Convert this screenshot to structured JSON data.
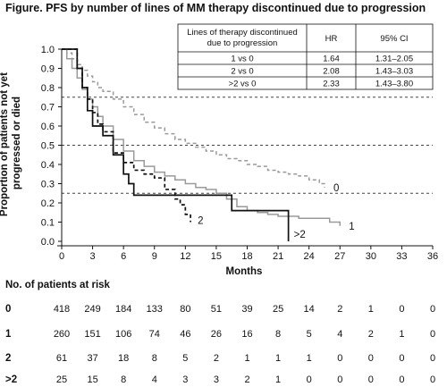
{
  "title": "Figure. PFS by number of lines of MM therapy discontinued due to progression",
  "chart_data": {
    "type": "line",
    "ylabel": "Proportion of patients not yet progressed or died",
    "xlabel": "Months",
    "xlim": [
      0,
      36
    ],
    "ylim": [
      0,
      1.0
    ],
    "x_ticks": [
      "0",
      "3",
      "6",
      "9",
      "12",
      "15",
      "18",
      "21",
      "24",
      "27",
      "30",
      "33",
      "36"
    ],
    "y_ticks": [
      "0.0",
      "0.1",
      "0.2",
      "0.3",
      "0.4",
      "0.5",
      "0.6",
      "0.7",
      "0.8",
      "0.9",
      "1.0"
    ],
    "reference_lines": [
      0.25,
      0.5,
      0.75
    ],
    "grid": false,
    "series": [
      {
        "name": "0",
        "color": "#9a9a9a",
        "style": "dashed",
        "points": [
          [
            0,
            1.0
          ],
          [
            0.5,
            0.98
          ],
          [
            1,
            0.95
          ],
          [
            1.5,
            0.92
          ],
          [
            2,
            0.89
          ],
          [
            2.5,
            0.86
          ],
          [
            3,
            0.83
          ],
          [
            3.5,
            0.8
          ],
          [
            4,
            0.78
          ],
          [
            5,
            0.74
          ],
          [
            6,
            0.7
          ],
          [
            7,
            0.66
          ],
          [
            8,
            0.62
          ],
          [
            9,
            0.59
          ],
          [
            10,
            0.56
          ],
          [
            11,
            0.53
          ],
          [
            12,
            0.51
          ],
          [
            13,
            0.49
          ],
          [
            14,
            0.47
          ],
          [
            15,
            0.45
          ],
          [
            16,
            0.43
          ],
          [
            17,
            0.42
          ],
          [
            18,
            0.4
          ],
          [
            19,
            0.39
          ],
          [
            20,
            0.37
          ],
          [
            21,
            0.36
          ],
          [
            22,
            0.35
          ],
          [
            23,
            0.34
          ],
          [
            24,
            0.32
          ],
          [
            25,
            0.3
          ],
          [
            25.5,
            0.28
          ]
        ]
      },
      {
        "name": "1",
        "color": "#9a9a9a",
        "style": "solid",
        "points": [
          [
            0,
            1.0
          ],
          [
            0.5,
            0.95
          ],
          [
            1,
            0.9
          ],
          [
            1.5,
            0.85
          ],
          [
            2,
            0.79
          ],
          [
            2.5,
            0.74
          ],
          [
            3,
            0.7
          ],
          [
            3.5,
            0.65
          ],
          [
            4,
            0.6
          ],
          [
            5,
            0.53
          ],
          [
            6,
            0.47
          ],
          [
            7,
            0.42
          ],
          [
            8,
            0.39
          ],
          [
            9,
            0.36
          ],
          [
            10,
            0.34
          ],
          [
            11,
            0.32
          ],
          [
            12,
            0.3
          ],
          [
            13,
            0.28
          ],
          [
            14,
            0.27
          ],
          [
            15,
            0.25
          ],
          [
            16,
            0.22
          ],
          [
            17,
            0.18
          ],
          [
            18,
            0.16
          ],
          [
            19,
            0.15
          ],
          [
            20,
            0.14
          ],
          [
            21,
            0.13
          ],
          [
            22,
            0.13
          ],
          [
            23,
            0.12
          ],
          [
            24,
            0.12
          ],
          [
            25,
            0.12
          ],
          [
            26,
            0.1
          ],
          [
            27,
            0.08
          ]
        ]
      },
      {
        "name": "2",
        "color": "#111111",
        "style": "dashed",
        "points": [
          [
            0,
            1.0
          ],
          [
            1,
            1.0
          ],
          [
            1.5,
            0.9
          ],
          [
            2,
            0.8
          ],
          [
            2.5,
            0.74
          ],
          [
            3,
            0.67
          ],
          [
            3.5,
            0.61
          ],
          [
            4,
            0.57
          ],
          [
            5,
            0.46
          ],
          [
            6,
            0.41
          ],
          [
            7,
            0.37
          ],
          [
            8,
            0.35
          ],
          [
            9,
            0.33
          ],
          [
            10,
            0.27
          ],
          [
            11,
            0.22
          ],
          [
            11.5,
            0.19
          ],
          [
            12,
            0.14
          ],
          [
            12.5,
            0.1
          ]
        ]
      },
      {
        "name": ">2",
        "color": "#111111",
        "style": "solid",
        "points": [
          [
            0,
            1.0
          ],
          [
            1,
            1.0
          ],
          [
            1.5,
            0.9
          ],
          [
            2,
            0.8
          ],
          [
            2.5,
            0.68
          ],
          [
            3,
            0.6
          ],
          [
            4,
            0.55
          ],
          [
            5,
            0.45
          ],
          [
            6,
            0.35
          ],
          [
            6.5,
            0.3
          ],
          [
            7,
            0.24
          ],
          [
            10,
            0.24
          ],
          [
            13,
            0.24
          ],
          [
            16,
            0.24
          ],
          [
            16.5,
            0.16
          ],
          [
            20,
            0.16
          ],
          [
            22,
            0.16
          ],
          [
            22,
            0.0
          ]
        ]
      }
    ]
  },
  "hr_table": {
    "headers": [
      "Lines of therapy discontinued due to progression",
      "HR",
      "95% CI"
    ],
    "rows": [
      [
        "1 vs 0",
        "1.64",
        "1.31–2.05"
      ],
      [
        "2 vs 0",
        "2.08",
        "1.43–3.03"
      ],
      [
        ">2 vs 0",
        "2.33",
        "1.43–3.80"
      ]
    ]
  },
  "risk_table": {
    "title": "No. of patients at risk",
    "rows": [
      {
        "label": "0",
        "values": [
          "418",
          "249",
          "184",
          "133",
          "80",
          "51",
          "39",
          "25",
          "14",
          "2",
          "1",
          "0",
          "0"
        ]
      },
      {
        "label": "1",
        "values": [
          "260",
          "151",
          "106",
          "74",
          "46",
          "26",
          "16",
          "8",
          "5",
          "4",
          "2",
          "1",
          "0"
        ]
      },
      {
        "label": "2",
        "values": [
          "61",
          "37",
          "18",
          "8",
          "5",
          "2",
          "1",
          "1",
          "1",
          "0",
          "0",
          "0",
          "0"
        ]
      },
      {
        "label": ">2",
        "values": [
          "25",
          "15",
          "8",
          "4",
          "3",
          "3",
          "2",
          "1",
          "0",
          "0",
          "0",
          "0",
          "0"
        ]
      }
    ]
  }
}
